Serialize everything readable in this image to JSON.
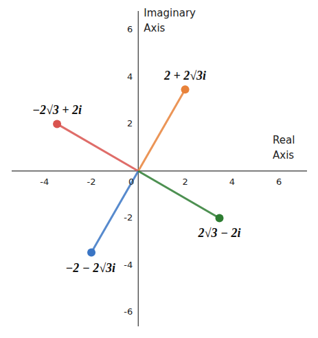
{
  "chart_data": {
    "type": "line",
    "xlabel": "Real Axis",
    "ylabel": "Imaginary Axis",
    "xlim": [
      -5.4,
      7.2
    ],
    "ylim": [
      -6.6,
      6.8
    ],
    "xticks": [
      -4,
      -2,
      0,
      2,
      4,
      6
    ],
    "yticks": [
      -6,
      -4,
      -2,
      2,
      4,
      6
    ],
    "grid": false,
    "series": [
      {
        "name": "2 + 2√3i",
        "color": "#e8823a",
        "marker": "circle",
        "x": [
          0,
          2
        ],
        "values": [
          0,
          3.464
        ]
      },
      {
        "name": "−2√3 + 2i",
        "color": "#d9534f",
        "marker": "circle",
        "x": [
          0,
          -3.464
        ],
        "values": [
          0,
          2
        ]
      },
      {
        "name": "−2 − 2√3i",
        "color": "#3a75c4",
        "marker": "circle",
        "x": [
          0,
          -2
        ],
        "values": [
          0,
          -3.464
        ]
      },
      {
        "name": "2√3 − 2i",
        "color": "#2e7d32",
        "marker": "circle",
        "x": [
          0,
          3.464
        ],
        "values": [
          0,
          -2
        ]
      }
    ]
  }
}
